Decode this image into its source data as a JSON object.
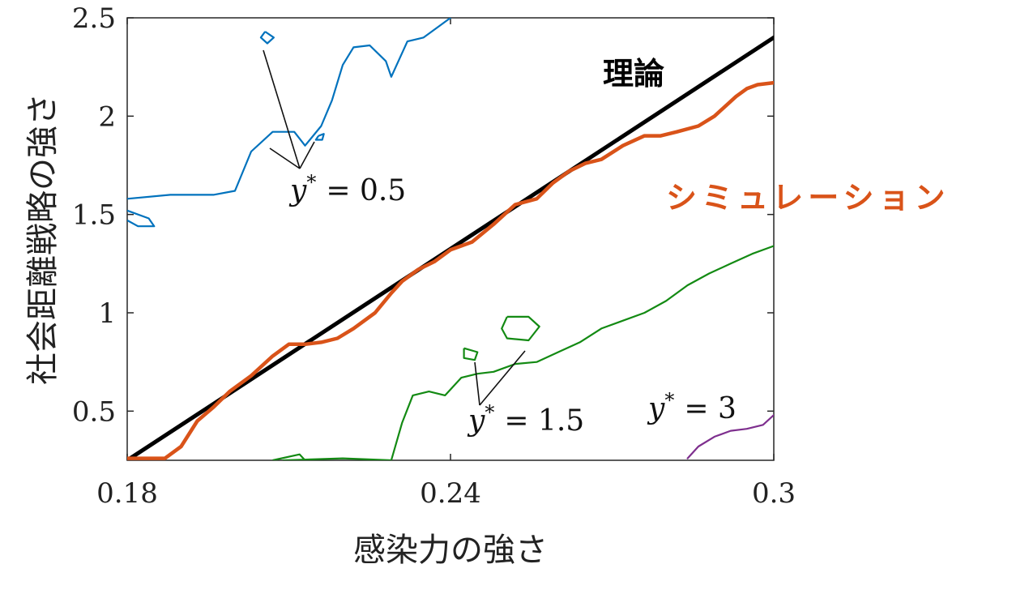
{
  "chart_data": {
    "type": "line",
    "xlabel": "感染力の強さ",
    "ylabel": "社会距離戦略の強さ",
    "xlim": [
      0.18,
      0.3
    ],
    "ylim": [
      0.25,
      2.5
    ],
    "xticks": [
      0.18,
      0.24,
      0.3
    ],
    "xtick_labels": [
      "0.18",
      "0.24",
      "0.3"
    ],
    "yticks": [
      0.5,
      1,
      1.5,
      2,
      2.5
    ],
    "ytick_labels": [
      "0.5",
      "1",
      "1.5",
      "2",
      "2.5"
    ],
    "grid": false,
    "colors": {
      "theory": "#000000",
      "simulation": "#d95319",
      "y05": "#0072bd",
      "y15": "#138a13",
      "y3": "#7e2f8e"
    },
    "series": [
      {
        "name": "理論",
        "key": "theory",
        "x": [
          0.18,
          0.3
        ],
        "y": [
          0.25,
          2.4
        ]
      },
      {
        "name": "シミュレーション",
        "key": "simulation",
        "x": [
          0.18,
          0.184,
          0.187,
          0.19,
          0.193,
          0.196,
          0.199,
          0.203,
          0.207,
          0.21,
          0.213,
          0.216,
          0.219,
          0.222,
          0.226,
          0.229,
          0.231,
          0.234,
          0.237,
          0.24,
          0.244,
          0.248,
          0.252,
          0.256,
          0.259,
          0.262,
          0.265,
          0.268,
          0.272,
          0.276,
          0.279,
          0.282,
          0.286,
          0.289,
          0.291,
          0.293,
          0.295,
          0.297,
          0.3
        ],
        "y": [
          0.26,
          0.26,
          0.26,
          0.32,
          0.45,
          0.52,
          0.6,
          0.68,
          0.78,
          0.84,
          0.84,
          0.85,
          0.87,
          0.92,
          1.0,
          1.1,
          1.16,
          1.22,
          1.26,
          1.32,
          1.36,
          1.45,
          1.55,
          1.58,
          1.66,
          1.72,
          1.76,
          1.78,
          1.85,
          1.9,
          1.9,
          1.92,
          1.95,
          2.0,
          2.05,
          2.1,
          2.14,
          2.16,
          2.17
        ]
      },
      {
        "name": "",
        "key": "y05",
        "x": [
          0.18,
          0.188,
          0.196,
          0.2,
          0.203,
          0.207,
          0.211,
          0.213,
          0.216,
          0.218,
          0.22,
          0.222,
          0.225,
          0.228,
          0.229,
          0.232,
          0.235,
          0.238,
          0.24
        ],
        "y": [
          1.58,
          1.6,
          1.6,
          1.62,
          1.82,
          1.92,
          1.92,
          1.85,
          1.95,
          2.08,
          2.26,
          2.35,
          2.36,
          2.28,
          2.2,
          2.38,
          2.4,
          2.46,
          2.5
        ]
      },
      {
        "name": "",
        "key": "y15",
        "x": [
          0.209,
          0.22,
          0.229,
          0.231,
          0.233,
          0.236,
          0.239,
          0.242,
          0.245,
          0.248,
          0.252,
          0.256,
          0.26,
          0.264,
          0.268,
          0.272,
          0.276,
          0.28,
          0.284,
          0.288,
          0.292,
          0.296,
          0.3
        ],
        "y": [
          0.25,
          0.26,
          0.25,
          0.44,
          0.58,
          0.6,
          0.58,
          0.67,
          0.69,
          0.7,
          0.74,
          0.75,
          0.8,
          0.85,
          0.92,
          0.96,
          1.0,
          1.06,
          1.14,
          1.2,
          1.25,
          1.3,
          1.34
        ]
      },
      {
        "name": "",
        "key": "y3",
        "x": [
          0.284,
          0.286,
          0.289,
          0.292,
          0.295,
          0.298,
          0.3
        ],
        "y": [
          0.26,
          0.32,
          0.37,
          0.4,
          0.41,
          0.43,
          0.48
        ]
      }
    ],
    "annotations": [
      {
        "var": "y",
        "sup": "*",
        "eq": "= 0.5"
      },
      {
        "var": "y",
        "sup": "*",
        "eq": "= 1.5"
      },
      {
        "var": "y",
        "sup": "*",
        "eq": "= 3"
      }
    ],
    "series_labels": {
      "theory": "理論",
      "simulation": "シミュレーション"
    }
  }
}
